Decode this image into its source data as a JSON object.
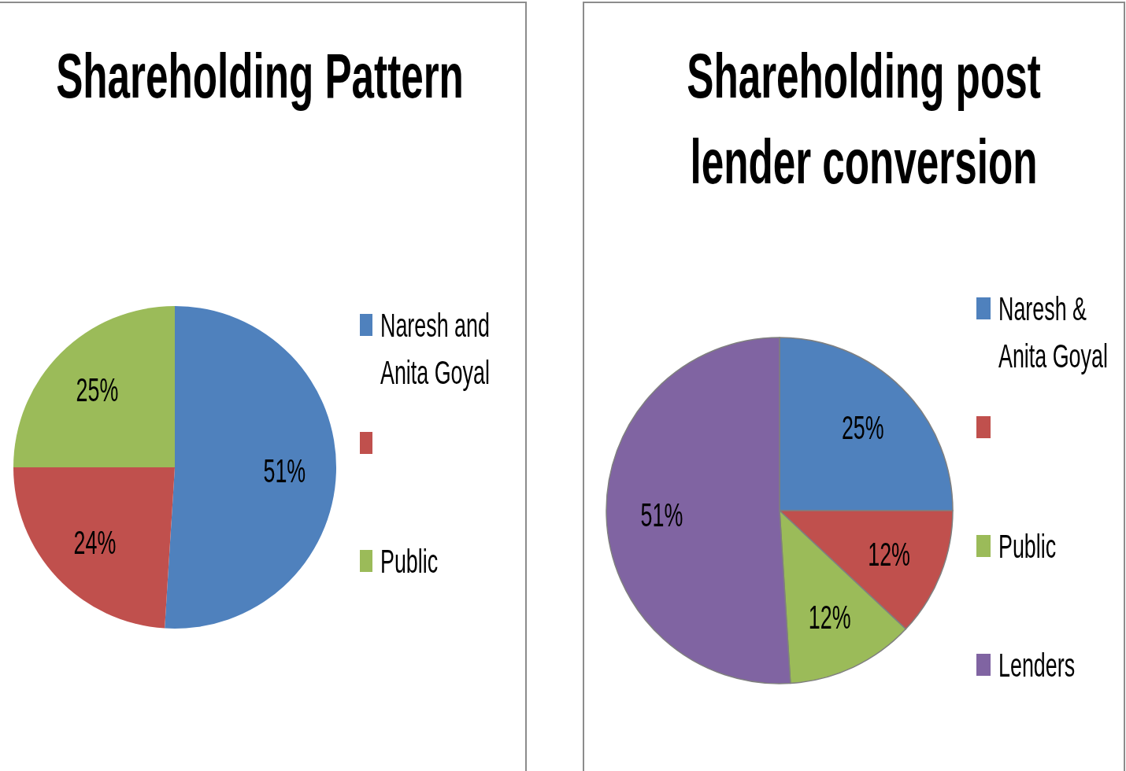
{
  "chart_data": [
    {
      "type": "pie",
      "title": "Shareholding Pattern",
      "categories": [
        "Naresh and Anita Goyal",
        null,
        "Public"
      ],
      "values": [
        51,
        24,
        25
      ],
      "colors": [
        "#4f81bd",
        "#c0504d",
        "#9bbb59"
      ],
      "value_labels": [
        "51%",
        "24%",
        "25%"
      ],
      "legend": "right"
    },
    {
      "type": "pie",
      "title": "Shareholding post lender conversion",
      "categories": [
        "Naresh & Anita Goyal",
        null,
        "Public",
        "Lenders"
      ],
      "values": [
        25,
        12,
        12,
        51
      ],
      "colors": [
        "#4f81bd",
        "#c0504d",
        "#9bbb59",
        "#8064a2"
      ],
      "value_labels": [
        "25%",
        "12%",
        "12%",
        "51%"
      ],
      "legend": "right"
    }
  ]
}
